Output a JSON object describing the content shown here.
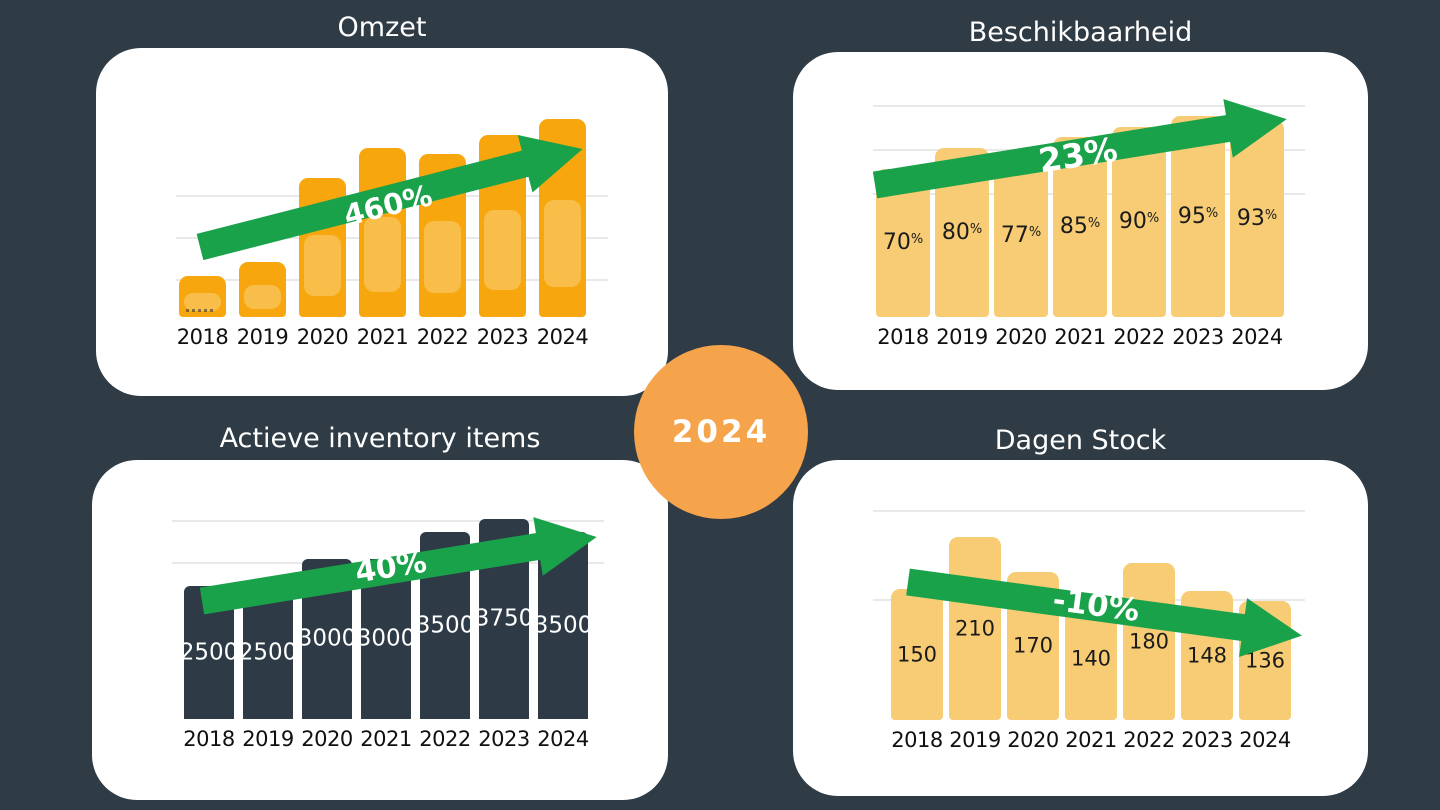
{
  "background_color": "#2F3B45",
  "accent_colors": {
    "orange": "#F7A70D",
    "light_orange": "#F7CC74",
    "dark_slate": "#2E3B46",
    "trend_green": "#1AA24B",
    "badge_orange": "#F6A44C"
  },
  "center_badge": {
    "label": "2024"
  },
  "chart_data": [
    {
      "id": "omzet",
      "type": "bar",
      "title": "Omzet",
      "categories": [
        "2018",
        "2019",
        "2020",
        "2021",
        "2022",
        "2023",
        "2024"
      ],
      "values": [
        100,
        135,
        340,
        415,
        400,
        445,
        485
      ],
      "values_note": "bars unlabeled; relative heights estimated from pixels",
      "bar_labels": null,
      "bar_label_suffix": "",
      "bar_color": "#F7A70D",
      "inner_highlight": true,
      "trend_arrow": {
        "label": "460%",
        "direction": "up"
      },
      "grid": "faint horizontal lines",
      "legend": "none"
    },
    {
      "id": "beschikbaarheid",
      "type": "bar",
      "title": "Beschikbaarheid",
      "categories": [
        "2018",
        "2019",
        "2020",
        "2021",
        "2022",
        "2023",
        "2024"
      ],
      "values": [
        70,
        80,
        77,
        85,
        90,
        95,
        93
      ],
      "unit": "%",
      "bar_labels": [
        "70",
        "80",
        "77",
        "85",
        "90",
        "95",
        "93"
      ],
      "bar_label_suffix": "%",
      "bar_color": "#F7CC74",
      "inner_highlight": false,
      "trend_arrow": {
        "label": "23%",
        "direction": "up"
      },
      "grid": "faint horizontal lines",
      "legend": "none"
    },
    {
      "id": "actieve_inventory_items",
      "type": "bar",
      "title": "Actieve inventory items",
      "categories": [
        "2018",
        "2019",
        "2020",
        "2021",
        "2022",
        "2023",
        "2024"
      ],
      "values": [
        2500,
        2500,
        3000,
        3000,
        3500,
        3750,
        3500
      ],
      "bar_labels": [
        "2500",
        "2500",
        "3000",
        "3000",
        "3500",
        "3750",
        "3500"
      ],
      "bar_label_suffix": "",
      "bar_color": "#2E3B46",
      "inner_highlight": false,
      "trend_arrow": {
        "label": "40%",
        "direction": "up"
      },
      "grid": "faint horizontal lines",
      "legend": "none"
    },
    {
      "id": "dagen_stock",
      "type": "bar",
      "title": "Dagen Stock",
      "categories": [
        "2018",
        "2019",
        "2020",
        "2021",
        "2022",
        "2023",
        "2024"
      ],
      "values": [
        150,
        210,
        170,
        140,
        180,
        148,
        136
      ],
      "bar_labels": [
        "150",
        "210",
        "170",
        "140",
        "180",
        "148",
        "136"
      ],
      "bar_label_suffix": "",
      "bar_color": "#F7CC74",
      "inner_highlight": false,
      "trend_arrow": {
        "label": "-10%",
        "direction": "down"
      },
      "grid": "faint horizontal lines",
      "legend": "none"
    }
  ]
}
